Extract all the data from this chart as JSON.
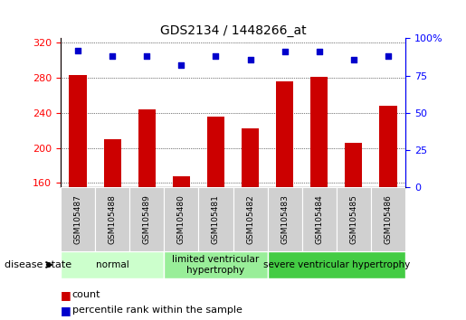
{
  "title": "GDS2134 / 1448266_at",
  "samples": [
    "GSM105487",
    "GSM105488",
    "GSM105489",
    "GSM105480",
    "GSM105481",
    "GSM105482",
    "GSM105483",
    "GSM105484",
    "GSM105485",
    "GSM105486"
  ],
  "counts": [
    283,
    210,
    244,
    167,
    236,
    222,
    276,
    281,
    206,
    248
  ],
  "percentiles": [
    92,
    88,
    88,
    82,
    88,
    86,
    91,
    91,
    86,
    88
  ],
  "ylim_left": [
    155,
    325
  ],
  "ylim_right": [
    0,
    100
  ],
  "yticks_left": [
    160,
    200,
    240,
    280,
    320
  ],
  "yticks_right": [
    0,
    25,
    50,
    75,
    100
  ],
  "bar_color": "#cc0000",
  "dot_color": "#0000cc",
  "groups": [
    {
      "label": "normal",
      "start": 0,
      "end": 3,
      "color": "#ccffcc"
    },
    {
      "label": "limited ventricular\nhypertrophy",
      "start": 3,
      "end": 6,
      "color": "#99ee99"
    },
    {
      "label": "severe ventricular hypertrophy",
      "start": 6,
      "end": 10,
      "color": "#44cc44"
    }
  ],
  "disease_state_label": "disease state",
  "legend_count_label": "count",
  "legend_percentile_label": "percentile rank within the sample",
  "bar_width": 0.5,
  "title_fontsize": 10,
  "sample_label_fontsize": 6.5,
  "group_label_fontsize": 7.5,
  "legend_fontsize": 8,
  "axis_tick_fontsize": 8,
  "gray_box_color": "#d0d0d0"
}
